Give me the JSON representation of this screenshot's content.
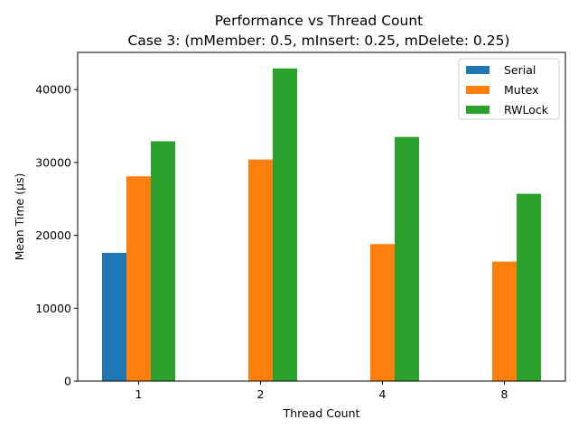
{
  "chart_data": {
    "type": "bar",
    "title": "Performance vs Thread Count",
    "subtitle": "Case 3: (mMember: 0.5, mInsert: 0.25, mDelete: 0.25)",
    "xlabel": "Thread Count",
    "ylabel": "Mean Time (µs)",
    "categories": [
      "1",
      "2",
      "4",
      "8"
    ],
    "ylim": [
      0,
      45100
    ],
    "yticks": [
      0,
      10000,
      20000,
      30000,
      40000
    ],
    "grid": false,
    "legend_position": "top-right",
    "series": [
      {
        "name": "Serial",
        "color": "#1f77b4",
        "values": [
          17600,
          null,
          null,
          null
        ]
      },
      {
        "name": "Mutex",
        "color": "#ff7f0e",
        "values": [
          28100,
          30400,
          18800,
          16400
        ]
      },
      {
        "name": "RWLock",
        "color": "#2ca02c",
        "values": [
          32900,
          42900,
          33500,
          25700
        ]
      }
    ]
  }
}
